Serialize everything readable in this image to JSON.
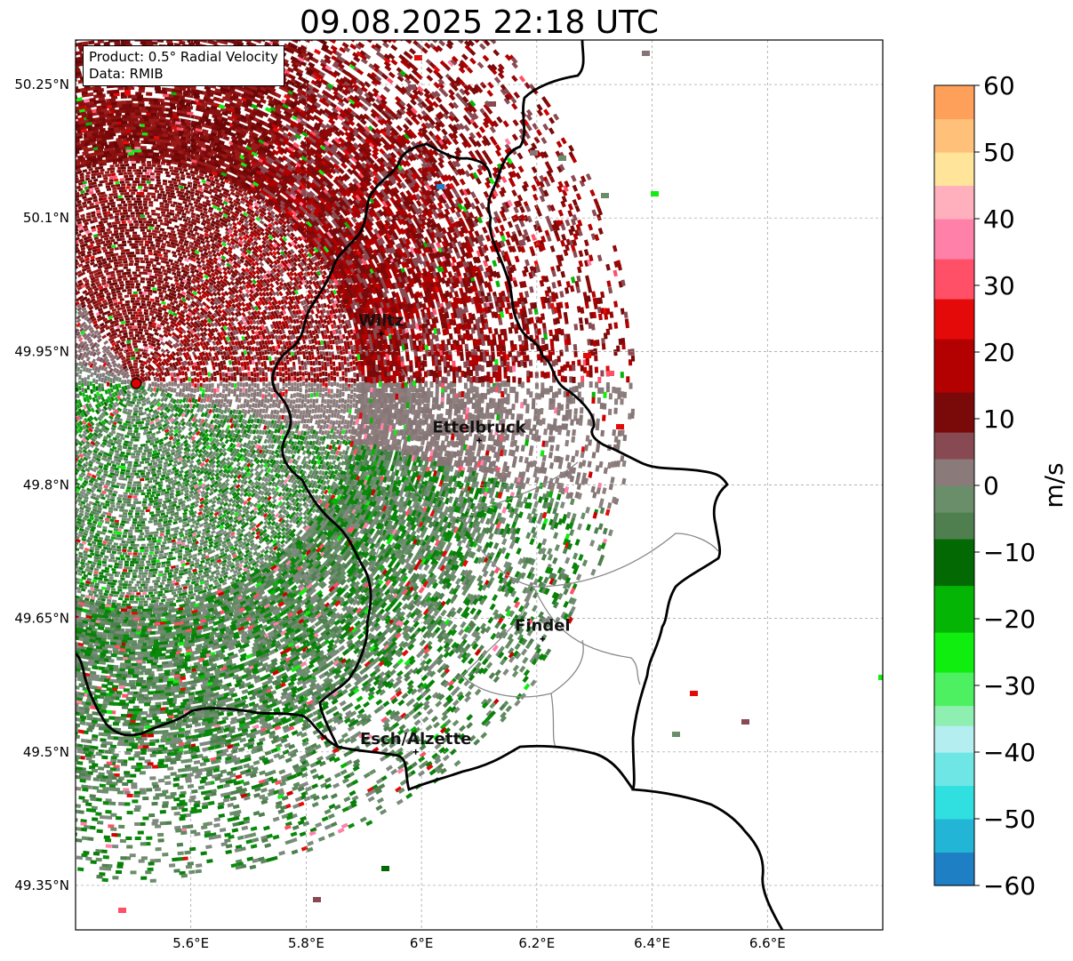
{
  "title": "09.08.2025 22:18 UTC",
  "info_box": {
    "product": "Product: 0.5° Radial Velocity",
    "data_source": "Data: RMIB"
  },
  "map": {
    "lon_range": [
      5.4,
      6.8
    ],
    "lat_range": [
      49.3,
      50.3
    ],
    "lon_ticks": [
      {
        "value": 5.6,
        "label": "5.6°E"
      },
      {
        "value": 5.8,
        "label": "5.8°E"
      },
      {
        "value": 6.0,
        "label": "6°E"
      },
      {
        "value": 6.2,
        "label": "6.2°E"
      },
      {
        "value": 6.4,
        "label": "6.4°E"
      },
      {
        "value": 6.6,
        "label": "6.6°E"
      }
    ],
    "lat_ticks": [
      {
        "value": 50.25,
        "label": "50.25°N"
      },
      {
        "value": 50.1,
        "label": "50.1°N"
      },
      {
        "value": 49.95,
        "label": "49.95°N"
      },
      {
        "value": 49.8,
        "label": "49.8°N"
      },
      {
        "value": 49.65,
        "label": "49.65°N"
      },
      {
        "value": 49.5,
        "label": "49.5°N"
      },
      {
        "value": 49.35,
        "label": "49.35°N"
      }
    ],
    "grid": true,
    "radar_site": {
      "lon": 5.505,
      "lat": 49.914
    },
    "cities": [
      {
        "name": "Wiltz",
        "lon": 5.93,
        "lat": 49.97
      },
      {
        "name": "Ettelbruck",
        "lon": 6.1,
        "lat": 49.85
      },
      {
        "name": "Findel",
        "lon": 6.21,
        "lat": 49.627
      },
      {
        "name": "Esch/Alzette",
        "lon": 5.99,
        "lat": 49.5
      }
    ]
  },
  "colorbar": {
    "unit": "m/s",
    "min": -60,
    "max": 60,
    "ticks": [
      {
        "value": 60,
        "label": "60"
      },
      {
        "value": 50,
        "label": "50"
      },
      {
        "value": 40,
        "label": "40"
      },
      {
        "value": 30,
        "label": "30"
      },
      {
        "value": 20,
        "label": "20"
      },
      {
        "value": 10,
        "label": "10"
      },
      {
        "value": 0,
        "label": "0"
      },
      {
        "value": -10,
        "label": "−10"
      },
      {
        "value": -20,
        "label": "−20"
      },
      {
        "value": -30,
        "label": "−30"
      },
      {
        "value": -40,
        "label": "−40"
      },
      {
        "value": -50,
        "label": "−50"
      },
      {
        "value": -60,
        "label": "−60"
      }
    ],
    "segments": [
      {
        "from": -60,
        "to": -55,
        "color": "#1f7fc4"
      },
      {
        "from": -55,
        "to": -50,
        "color": "#22b5d6"
      },
      {
        "from": -50,
        "to": -45,
        "color": "#30dfe0"
      },
      {
        "from": -45,
        "to": -40,
        "color": "#6fe6e6"
      },
      {
        "from": -40,
        "to": -36,
        "color": "#b4eef0"
      },
      {
        "from": -36,
        "to": -33,
        "color": "#8ef0b0"
      },
      {
        "from": -33,
        "to": -28,
        "color": "#4cf060"
      },
      {
        "from": -28,
        "to": -22,
        "color": "#10ee10"
      },
      {
        "from": -22,
        "to": -15,
        "color": "#05b505"
      },
      {
        "from": -15,
        "to": -8,
        "color": "#036903"
      },
      {
        "from": -8,
        "to": -4,
        "color": "#4f7f4f"
      },
      {
        "from": -4,
        "to": 0,
        "color": "#6a8e6a"
      },
      {
        "from": 0,
        "to": 4,
        "color": "#8a7a7a"
      },
      {
        "from": 4,
        "to": 8,
        "color": "#884a52"
      },
      {
        "from": 8,
        "to": 14,
        "color": "#7a0a0a"
      },
      {
        "from": 14,
        "to": 22,
        "color": "#b30000"
      },
      {
        "from": 22,
        "to": 28,
        "color": "#e50a0a"
      },
      {
        "from": 28,
        "to": 34,
        "color": "#ff5068"
      },
      {
        "from": 34,
        "to": 40,
        "color": "#ff80a8"
      },
      {
        "from": 40,
        "to": 45,
        "color": "#ffb0bc"
      },
      {
        "from": 45,
        "to": 50,
        "color": "#ffe49a"
      },
      {
        "from": 50,
        "to": 55,
        "color": "#ffc07a"
      },
      {
        "from": 55,
        "to": 60,
        "color": "#ffa05a"
      }
    ]
  }
}
